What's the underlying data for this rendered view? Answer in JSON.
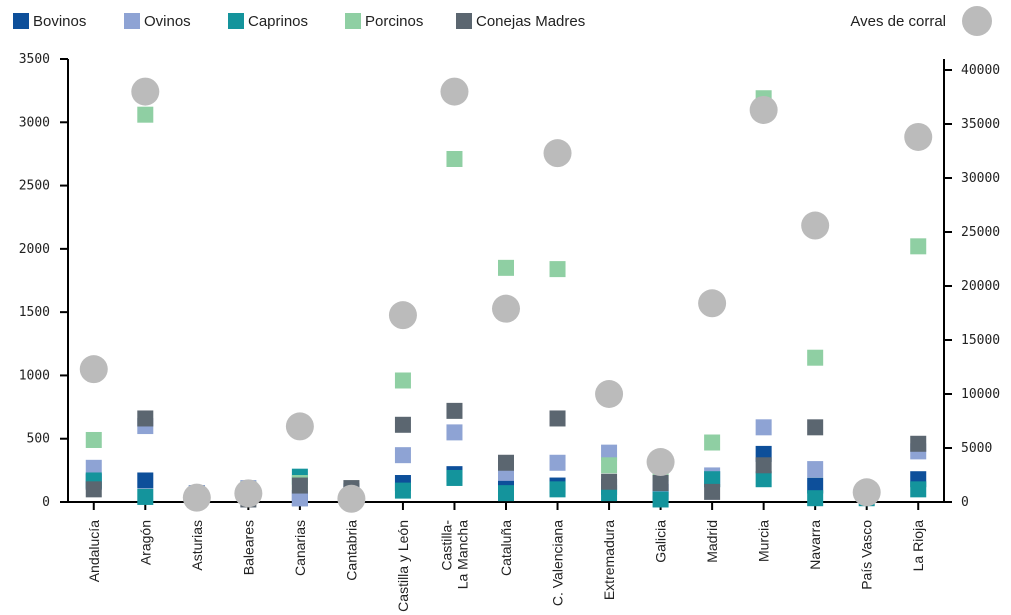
{
  "chart_data": {
    "type": "scatter",
    "categories": [
      "Andalucía",
      "Aragón",
      "Asturias",
      "Baleares",
      "Canarias",
      "Cantabria",
      "Castilla y León",
      "Castilla-\nLa Mancha",
      "Cataluña",
      "C. Valenciana",
      "Extremadura",
      "Galicia",
      "Madrid",
      "Murcia",
      "Navarra",
      "País Vasco",
      "La Rioja"
    ],
    "y_left": {
      "ticks": [
        0,
        500,
        1000,
        1500,
        2000,
        2500,
        3000,
        3500
      ],
      "ylim": [
        0,
        3500
      ]
    },
    "y_right": {
      "ticks": [
        0,
        5000,
        10000,
        15000,
        20000,
        25000,
        30000,
        35000,
        40000
      ],
      "ylim": [
        0,
        40000
      ]
    },
    "legend_position": "top",
    "series": [
      {
        "name": "Bovinos",
        "color": "#0d4f9a",
        "marker": "square",
        "axis": "left",
        "values": [
          160,
          170,
          70,
          80,
          30,
          85,
          150,
          220,
          160,
          130,
          120,
          80,
          180,
          380,
          130,
          70,
          180
        ]
      },
      {
        "name": "Ovinos",
        "color": "#8ea3d4",
        "marker": "square",
        "axis": "left",
        "values": [
          270,
          600,
          70,
          110,
          30,
          60,
          370,
          550,
          230,
          310,
          390,
          110,
          210,
          590,
          260,
          70,
          400
        ]
      },
      {
        "name": "Caprinos",
        "color": "#14949c",
        "marker": "square",
        "axis": "left",
        "values": [
          170,
          40,
          60,
          80,
          200,
          20,
          90,
          190,
          70,
          100,
          70,
          20,
          180,
          180,
          30,
          30,
          100
        ]
      },
      {
        "name": "Porcinos",
        "color": "#8fcfa3",
        "marker": "square",
        "axis": "left",
        "values": [
          490,
          3060,
          50,
          100,
          150,
          20,
          960,
          2710,
          1850,
          1840,
          290,
          230,
          470,
          3190,
          1140,
          100,
          2020
        ]
      },
      {
        "name": "Conejas Madres",
        "color": "#5b6670",
        "marker": "square",
        "axis": "left",
        "values": [
          100,
          660,
          30,
          20,
          130,
          110,
          610,
          720,
          310,
          660,
          160,
          150,
          80,
          290,
          590,
          80,
          460
        ]
      },
      {
        "name": "Aves de corral",
        "color": "#bbbbbb",
        "marker": "circle",
        "axis": "right",
        "values": [
          12300,
          38000,
          400,
          800,
          7000,
          300,
          17300,
          38000,
          17900,
          32300,
          10000,
          3700,
          18400,
          36300,
          25600,
          900,
          33800
        ]
      }
    ]
  }
}
